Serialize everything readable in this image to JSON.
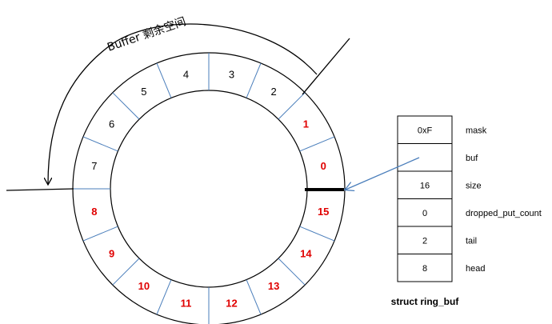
{
  "caption": "Buffer 剩余空间",
  "ring": {
    "segments": [
      {
        "index": 0,
        "label": "0",
        "used": true
      },
      {
        "index": 1,
        "label": "1",
        "used": true
      },
      {
        "index": 2,
        "label": "2",
        "used": false
      },
      {
        "index": 3,
        "label": "3",
        "used": false
      },
      {
        "index": 4,
        "label": "4",
        "used": false
      },
      {
        "index": 5,
        "label": "5",
        "used": false
      },
      {
        "index": 6,
        "label": "6",
        "used": false
      },
      {
        "index": 7,
        "label": "7",
        "used": false
      },
      {
        "index": 8,
        "label": "8",
        "used": true
      },
      {
        "index": 9,
        "label": "9",
        "used": true
      },
      {
        "index": 10,
        "label": "10",
        "used": true
      },
      {
        "index": 11,
        "label": "11",
        "used": true
      },
      {
        "index": 12,
        "label": "12",
        "used": true
      },
      {
        "index": 13,
        "label": "13",
        "used": true
      },
      {
        "index": 14,
        "label": "14",
        "used": true
      },
      {
        "index": 15,
        "label": "15",
        "used": true
      }
    ]
  },
  "colors": {
    "used": "#e00000",
    "free": "#000000",
    "divider": "#4a7ebb",
    "pointer": "#4a7ebb"
  },
  "struct": {
    "title": "struct ring_buf",
    "fields": [
      {
        "value": "0xF",
        "name": "mask"
      },
      {
        "value": "",
        "name": "buf"
      },
      {
        "value": "16",
        "name": "size"
      },
      {
        "value": "0",
        "name": "dropped_put_count"
      },
      {
        "value": "2",
        "name": "tail"
      },
      {
        "value": "8",
        "name": "head"
      }
    ]
  }
}
